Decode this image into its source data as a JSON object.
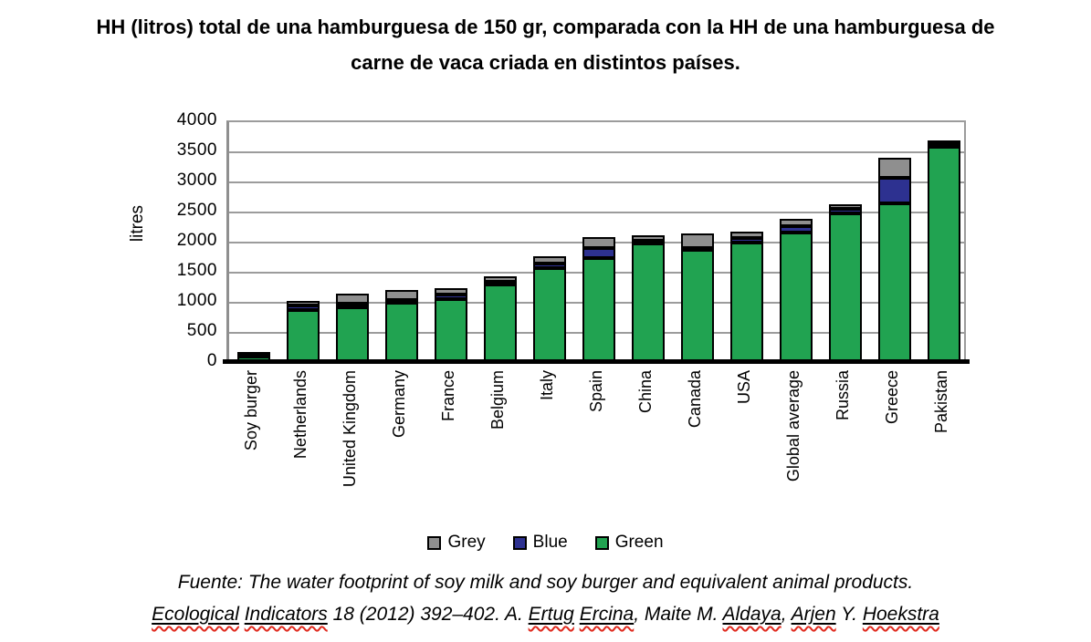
{
  "title": {
    "line1": "HH (litros) total de una hamburguesa de 150 gr, comparada con la HH de una hamburguesa de",
    "line2": "carne de vaca criada en distintos países."
  },
  "chart_data": {
    "type": "bar",
    "stacked": true,
    "ylabel": "litres",
    "ylim": [
      0,
      4000
    ],
    "yticks": [
      0,
      500,
      1000,
      1500,
      2000,
      2500,
      3000,
      3500,
      4000
    ],
    "grid": true,
    "legend_position": "bottom",
    "categories": [
      "Soy burger",
      "Netherlands",
      "United Kingdom",
      "Germany",
      "France",
      "Belgium",
      "Italy",
      "Spain",
      "China",
      "Canada",
      "USA",
      "Global average",
      "Russia",
      "Greece",
      "Pakistan"
    ],
    "series": [
      {
        "name": "Green",
        "color": "#21a351",
        "values": [
          80,
          845,
          900,
          970,
          1030,
          1280,
          1545,
          1705,
          1950,
          1850,
          1975,
          2135,
          2455,
          2615,
          3560
        ]
      },
      {
        "name": "Blue",
        "color": "#2d3190",
        "values": [
          10,
          75,
          50,
          45,
          75,
          35,
          75,
          170,
          55,
          35,
          75,
          100,
          80,
          430,
          40
        ]
      },
      {
        "name": "Grey",
        "color": "#8f8f8f",
        "values": [
          60,
          80,
          160,
          165,
          110,
          95,
          120,
          175,
          95,
          235,
          105,
          115,
          80,
          330,
          55
        ]
      }
    ],
    "totals": [
      150,
      1000,
      1110,
      1180,
      1215,
      1410,
      1740,
      2050,
      2100,
      2120,
      2155,
      2350,
      2615,
      3375,
      3655
    ],
    "legend": [
      {
        "label": "Grey",
        "color": "#8f8f8f"
      },
      {
        "label": "Blue",
        "color": "#2d3190"
      },
      {
        "label": "Green",
        "color": "#21a351"
      }
    ]
  },
  "footer": {
    "line1": "Fuente: The water footprint of soy milk and soy burger and equivalent animal products.",
    "line2_parts": [
      {
        "text": "Ecological",
        "misspelled": true
      },
      {
        "text": " ",
        "misspelled": false
      },
      {
        "text": "Indicators",
        "misspelled": true
      },
      {
        "text": " 18 (2012) 392–402. A. ",
        "misspelled": false
      },
      {
        "text": "Ertug",
        "misspelled": true
      },
      {
        "text": " ",
        "misspelled": false
      },
      {
        "text": "Ercina",
        "misspelled": true
      },
      {
        "text": ", Maite M. ",
        "misspelled": false
      },
      {
        "text": "Aldaya",
        "misspelled": true
      },
      {
        "text": ", ",
        "misspelled": false
      },
      {
        "text": "Arjen",
        "misspelled": true
      },
      {
        "text": " Y. ",
        "misspelled": false
      },
      {
        "text": "Hoekstra",
        "misspelled": true
      }
    ]
  },
  "colors": {
    "green": "#21a351",
    "blue": "#2d3190",
    "grey": "#8f8f8f",
    "gridline": "#9c9c9c",
    "axis": "#000000",
    "bar_border": "#000000",
    "wavy_underline": "#e02a1e"
  }
}
